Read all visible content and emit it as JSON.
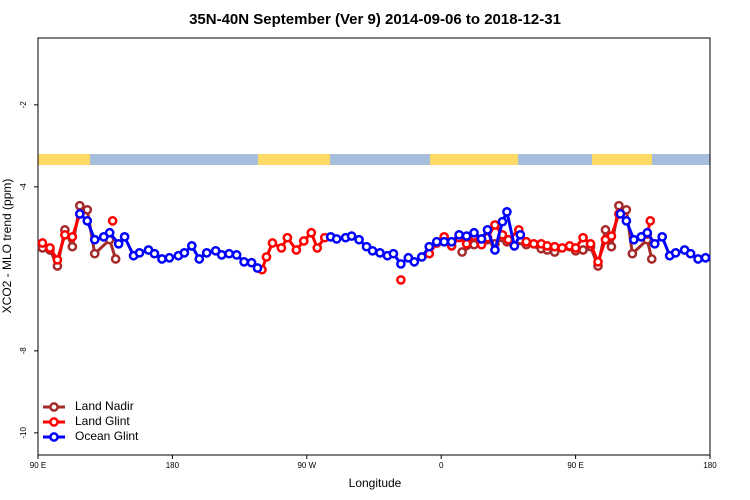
{
  "chart_data": {
    "type": "line",
    "title": "35N-40N September (Ver 9)   2014-09-06 to 2018-12-31",
    "x_label": "Longitude",
    "y_label": "XCO2 - MLO trend (ppm)",
    "xlim": [
      90,
      540
    ],
    "xticks": [
      {
        "value": 90,
        "label": "90 E"
      },
      {
        "value": 180,
        "label": "180"
      },
      {
        "value": 270,
        "label": "90 W"
      },
      {
        "value": 360,
        "label": "0"
      },
      {
        "value": 450,
        "label": "90 E"
      },
      {
        "value": 540,
        "label": "180"
      }
    ],
    "ylim": [
      -10.54,
      -0.37
    ],
    "yticks": [
      -10,
      -8,
      -4,
      -2
    ],
    "legend": "bottom-left",
    "series": [
      {
        "name": "Land Nadir",
        "color": "#a52a2a",
        "x": [
          93,
          98,
          103,
          108,
          113,
          118,
          123,
          128,
          138,
          142,
          374,
          382,
          391,
          396,
          401,
          404,
          417,
          427,
          431,
          436,
          446,
          450,
          455,
          460,
          465,
          470,
          474,
          479,
          484,
          488,
          498,
          501
        ],
        "values": [
          -5.49,
          -5.54,
          -5.93,
          -5.05,
          -5.46,
          -4.46,
          -4.56,
          -5.63,
          -5.29,
          -5.76,
          -5.59,
          -5.41,
          -5.29,
          -5.39,
          -5.24,
          -5.34,
          -5.41,
          -5.51,
          -5.54,
          -5.59,
          -5.46,
          -5.56,
          -5.54,
          -5.46,
          -5.93,
          -5.05,
          -5.46,
          -4.46,
          -4.56,
          -5.63,
          -5.29,
          -5.76
        ]
      },
      {
        "name": "Land Glint",
        "color": "#ff0000",
        "x": [
          93,
          98,
          103,
          108,
          113,
          118,
          140,
          240,
          243,
          247,
          253,
          257,
          263,
          268,
          273,
          277,
          282,
          333,
          352,
          357,
          362,
          367,
          372,
          377,
          382,
          387,
          391,
          396,
          401,
          405,
          412,
          417,
          422,
          427,
          431,
          436,
          441,
          446,
          450,
          455,
          460,
          465,
          470,
          474,
          479,
          498,
          500
        ],
        "values": [
          -5.37,
          -5.49,
          -5.78,
          -5.17,
          -5.22,
          -4.66,
          -4.83,
          -6.02,
          -5.71,
          -5.37,
          -5.49,
          -5.24,
          -5.54,
          -5.32,
          -5.12,
          -5.49,
          -5.24,
          -6.27,
          -5.63,
          -5.37,
          -5.22,
          -5.44,
          -5.24,
          -5.39,
          -5.2,
          -5.41,
          -5.24,
          -4.93,
          -5.17,
          -5.29,
          -5.05,
          -5.34,
          -5.39,
          -5.39,
          -5.44,
          -5.46,
          -5.49,
          -5.44,
          -5.49,
          -5.24,
          -5.39,
          -5.83,
          -5.29,
          -5.2,
          -4.66,
          -5.15,
          -4.83
        ]
      },
      {
        "name": "Ocean Glint",
        "color": "#0000ff",
        "x": [
          118,
          123,
          128,
          134,
          138,
          144,
          148,
          154,
          158,
          164,
          168,
          173,
          178,
          184,
          188,
          193,
          198,
          203,
          209,
          213,
          218,
          223,
          228,
          233,
          237,
          286,
          290,
          296,
          300,
          305,
          310,
          314,
          319,
          324,
          328,
          333,
          338,
          342,
          347,
          352,
          357,
          362,
          367,
          372,
          377,
          382,
          387,
          391,
          396,
          401,
          404,
          409,
          413,
          480,
          484,
          489,
          494,
          498,
          503,
          508,
          513,
          517,
          523,
          527,
          532,
          537
        ],
        "values": [
          -4.66,
          -4.83,
          -5.29,
          -5.22,
          -5.12,
          -5.39,
          -5.22,
          -5.68,
          -5.61,
          -5.54,
          -5.63,
          -5.76,
          -5.73,
          -5.68,
          -5.61,
          -5.44,
          -5.76,
          -5.61,
          -5.56,
          -5.66,
          -5.63,
          -5.66,
          -5.83,
          -5.85,
          -5.98,
          -5.22,
          -5.27,
          -5.24,
          -5.2,
          -5.29,
          -5.46,
          -5.56,
          -5.61,
          -5.68,
          -5.63,
          -5.88,
          -5.73,
          -5.83,
          -5.71,
          -5.46,
          -5.34,
          -5.34,
          -5.34,
          -5.17,
          -5.2,
          -5.12,
          -5.27,
          -5.05,
          -5.54,
          -4.85,
          -4.61,
          -5.44,
          -5.17,
          -4.66,
          -4.83,
          -5.29,
          -5.22,
          -5.12,
          -5.39,
          -5.22,
          -5.68,
          -5.61,
          -5.54,
          -5.63,
          -5.76,
          -5.73
        ]
      }
    ]
  }
}
